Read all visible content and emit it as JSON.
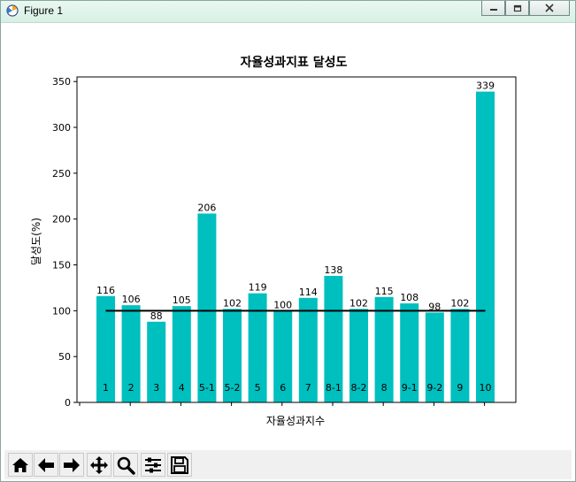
{
  "window": {
    "title": "Figure 1",
    "controls": [
      "minimize",
      "maximize",
      "close"
    ]
  },
  "toolbar": {
    "buttons": [
      "home-icon",
      "back-icon",
      "forward-icon",
      "pan-icon",
      "zoom-icon",
      "configure-icon",
      "save-icon"
    ]
  },
  "colors": {
    "bar": "#00bfbf",
    "target_line": "#000000"
  },
  "chart_data": {
    "type": "bar",
    "title": "자율성과지표 달성도",
    "xlabel": "자율성과지수",
    "ylabel": "달성도(%)",
    "ylim": [
      0,
      355
    ],
    "yticks": [
      "0",
      "50",
      "100",
      "150",
      "200",
      "250",
      "300",
      "350"
    ],
    "categories": [
      "1",
      "2",
      "3",
      "4",
      "5-1",
      "5-2",
      "5",
      "6",
      "7",
      "8-1",
      "8-2",
      "8",
      "9-1",
      "9-2",
      "9",
      "10"
    ],
    "values": [
      116,
      106,
      88,
      105,
      206,
      102,
      119,
      100,
      114,
      138,
      102,
      115,
      108,
      98,
      102,
      339
    ],
    "value_labels": [
      "116",
      "106",
      "88",
      "105",
      "206",
      "102",
      "119",
      "100",
      "114",
      "138",
      "102",
      "115",
      "108",
      "98",
      "102",
      "339"
    ],
    "target": 100,
    "grid": false,
    "legend": "none"
  }
}
